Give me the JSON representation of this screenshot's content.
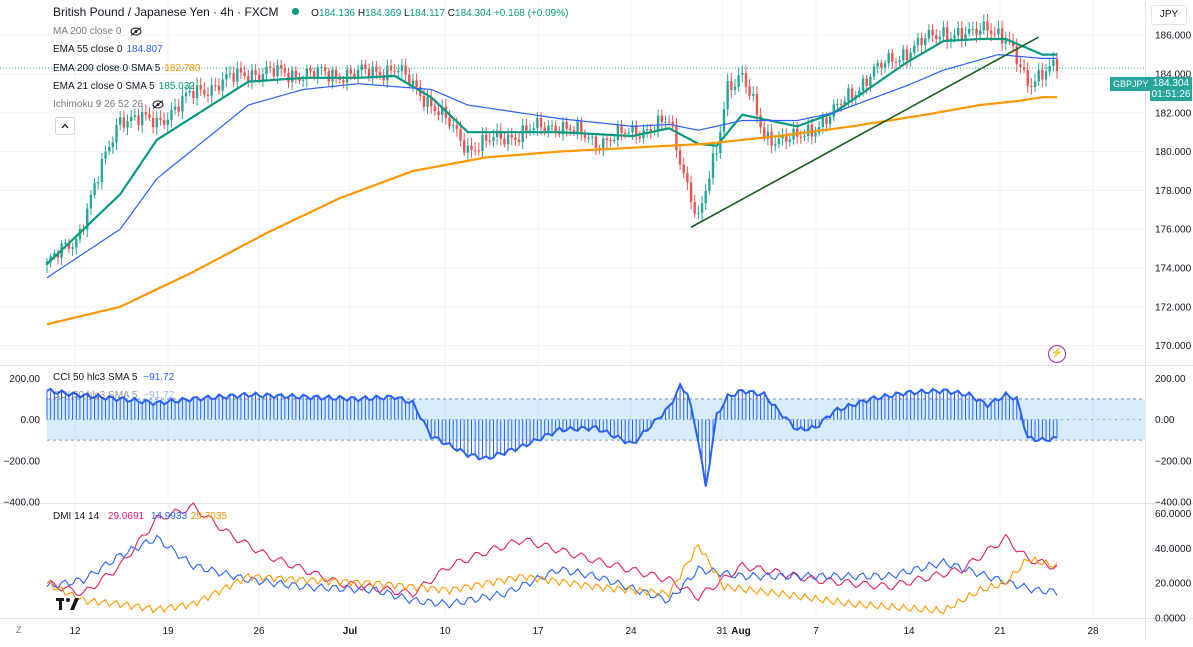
{
  "header": {
    "symbol_title": "British Pound / Japanese Yen · 4h · FXCM",
    "open_label": "O",
    "open": "184.136",
    "high_label": "H",
    "high": "184.369",
    "low_label": "L",
    "low": "184.117",
    "close_label": "C",
    "close": "184.304",
    "change": "+0.168 (+0.09%)"
  },
  "indicators": [
    {
      "label": "MA 200 close 0",
      "value": "",
      "color": "#787b86"
    },
    {
      "label": "EMA 55 close 0",
      "value": "184.807",
      "color": "#2962ff"
    },
    {
      "label": "EMA 200 close 0 SMA 5",
      "value": "182.780",
      "color": "#ff9800"
    },
    {
      "label": "EMA 21 close 0 SMA 5",
      "value": "185.032",
      "color": "#089981"
    },
    {
      "label": "Ichimoku 9 26 52 26",
      "value": "",
      "color": "#787b86"
    }
  ],
  "collapse_icon": "chevron-up-icon",
  "currency": "JPY",
  "price_tag": {
    "symbol": "GBPJPY",
    "price": "184.304",
    "countdown": "01:51:26",
    "color": "#26a69a"
  },
  "cci": {
    "label": "CCI 50 hlc3 SMA 5",
    "value": "−91.72",
    "value_color": "#2962ff"
  },
  "dmi": {
    "label": "DMI 14 14",
    "plus_di": "29.0691",
    "minus_di": "14.9933",
    "adx": "29.7035",
    "plus_color": "#e91e63",
    "minus_color": "#2962ff",
    "adx_color": "#ff9800"
  },
  "x_labels": [
    "12",
    "19",
    "26",
    "Jul",
    "10",
    "17",
    "24",
    "31",
    "Aug",
    "7",
    "14",
    "21",
    "28"
  ],
  "z_label": "Z",
  "chart_data": [
    {
      "type": "candlestick",
      "title": "British Pound / Japanese Yen · 4h · FXCM",
      "ylim": [
        169,
        187.4
      ],
      "yticks": [
        "186.000",
        "184.000",
        "182.000",
        "180.000",
        "178.000",
        "176.000",
        "174.000",
        "172.000",
        "170.000"
      ],
      "price_anchors": {
        "x_index": [
          0,
          8,
          20,
          30,
          40,
          55,
          70,
          85,
          95,
          105,
          115,
          130,
          140,
          150,
          160,
          170,
          178,
          183,
          186,
          190,
          196,
          205,
          215,
          225,
          235,
          245,
          252,
          257,
          262,
          268,
          272,
          276
        ],
        "close": [
          174.2,
          175.5,
          181.8,
          181.5,
          183.0,
          184.1,
          184.0,
          184.0,
          184.3,
          182.5,
          180.2,
          181.0,
          181.4,
          180.5,
          181.0,
          181.5,
          176.5,
          180.0,
          183.5,
          183.9,
          180.8,
          180.6,
          182.0,
          184.0,
          185.2,
          186.2,
          185.9,
          186.6,
          185.7,
          183.6,
          184.1,
          184.3
        ]
      },
      "series": [
        {
          "name": "EMA 21 close 0 SMA 5",
          "color": "#089981",
          "x_index": [
            0,
            20,
            30,
            55,
            70,
            85,
            95,
            105,
            115,
            140,
            160,
            170,
            178,
            183,
            190,
            205,
            215,
            235,
            245,
            255,
            262,
            272
          ],
          "values": [
            174.2,
            177.8,
            180.6,
            183.6,
            183.8,
            183.8,
            183.9,
            182.8,
            181.0,
            181.0,
            180.8,
            181.2,
            180.4,
            180.3,
            181.9,
            181.3,
            182.0,
            184.6,
            185.7,
            185.8,
            185.8,
            185.0
          ]
        },
        {
          "name": "EMA 55 close 0",
          "color": "#2962ff",
          "x_index": [
            0,
            20,
            30,
            55,
            70,
            85,
            105,
            115,
            140,
            160,
            170,
            178,
            190,
            205,
            215,
            235,
            245,
            260,
            272
          ],
          "values": [
            173.5,
            176.0,
            178.6,
            182.4,
            183.2,
            183.5,
            183.2,
            182.4,
            181.7,
            181.3,
            181.4,
            181.1,
            181.6,
            181.6,
            182.0,
            183.4,
            184.2,
            185.0,
            184.8
          ]
        },
        {
          "name": "EMA 200 close 0 SMA 5",
          "color": "#ff9800",
          "x_index": [
            0,
            20,
            40,
            60,
            80,
            100,
            120,
            140,
            160,
            180,
            200,
            220,
            240,
            255,
            265,
            272
          ],
          "values": [
            171.1,
            172.0,
            173.8,
            175.8,
            177.6,
            179.0,
            179.7,
            180.0,
            180.2,
            180.4,
            180.8,
            181.3,
            181.9,
            182.4,
            182.6,
            182.8
          ]
        }
      ],
      "trendline": {
        "from": {
          "x_index": 176,
          "price": 176.1
        },
        "to": {
          "x_index": 271,
          "price": 185.9
        },
        "color": "#1b5e20"
      }
    },
    {
      "type": "histogram",
      "title": "CCI 50 hlc3 SMA 5",
      "ylim": [
        -400,
        250
      ],
      "yticks": [
        "200.00",
        "0.00",
        "−200.00",
        "−400.00"
      ],
      "bands": [
        100,
        -100
      ],
      "x_index": [
        0,
        8,
        20,
        30,
        40,
        55,
        70,
        85,
        95,
        100,
        105,
        115,
        120,
        130,
        140,
        150,
        160,
        170,
        173,
        175,
        178,
        180,
        183,
        186,
        190,
        196,
        200,
        205,
        210,
        215,
        225,
        235,
        245,
        252,
        257,
        262,
        265,
        268,
        272,
        276
      ],
      "values": [
        140,
        120,
        100,
        80,
        100,
        120,
        110,
        100,
        110,
        80,
        -80,
        -170,
        -190,
        -130,
        -50,
        -40,
        -120,
        60,
        160,
        130,
        -100,
        -330,
        20,
        110,
        140,
        120,
        40,
        -50,
        -40,
        40,
        100,
        130,
        140,
        120,
        70,
        120,
        100,
        -90,
        -100,
        -91.72
      ]
    },
    {
      "type": "line",
      "title": "DMI 14 14",
      "ylim": [
        0,
        61
      ],
      "yticks": [
        "60.0000",
        "40.0000",
        "20.0000",
        "0.0000"
      ],
      "series": [
        {
          "name": "+DI",
          "color": "#e91e63",
          "x_index": [
            0,
            10,
            20,
            30,
            40,
            50,
            60,
            80,
            100,
            110,
            120,
            130,
            150,
            170,
            178,
            190,
            210,
            230,
            250,
            262,
            268,
            276
          ],
          "values": [
            20,
            14,
            30,
            57,
            64,
            48,
            36,
            20,
            14,
            30,
            38,
            45,
            33,
            22,
            12,
            30,
            22,
            18,
            28,
            46,
            34,
            29.07
          ]
        },
        {
          "name": "−DI",
          "color": "#2962ff",
          "x_index": [
            0,
            10,
            20,
            30,
            40,
            55,
            70,
            90,
            100,
            110,
            125,
            140,
            150,
            170,
            178,
            190,
            210,
            230,
            245,
            260,
            270,
            276
          ],
          "values": [
            18,
            22,
            36,
            46,
            30,
            22,
            18,
            16,
            10,
            8,
            14,
            28,
            24,
            10,
            28,
            24,
            24,
            24,
            32,
            22,
            16,
            14.99
          ]
        },
        {
          "name": "ADX",
          "color": "#ff9800",
          "x_index": [
            0,
            10,
            20,
            30,
            40,
            55,
            70,
            90,
            100,
            110,
            130,
            150,
            170,
            178,
            185,
            200,
            220,
            245,
            255,
            262,
            268,
            276
          ],
          "values": [
            20,
            10,
            8,
            5,
            8,
            24,
            22,
            20,
            18,
            16,
            24,
            18,
            14,
            42,
            18,
            14,
            8,
            4,
            16,
            20,
            34,
            29.7
          ]
        }
      ]
    }
  ]
}
